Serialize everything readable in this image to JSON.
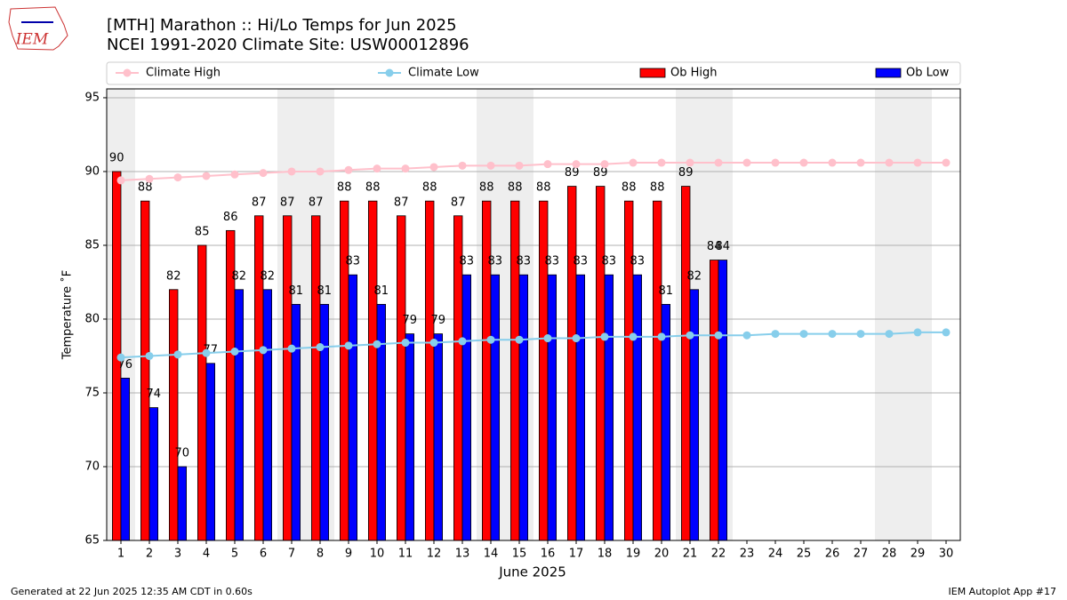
{
  "chart_data": {
    "type": "bar",
    "logo_text": "IEM",
    "title": "[MTH] Marathon :: Hi/Lo Temps for Jun 2025",
    "subtitle": "NCEI 1991-2020 Climate Site: USW00012896",
    "x_label": "June 2025",
    "y_label": "Temperature ˚F",
    "footer_left": "Generated at 22 Jun 2025 12:35 AM CDT in 0.60s",
    "footer_right": "IEM Autoplot App #17",
    "x": [
      1,
      2,
      3,
      4,
      5,
      6,
      7,
      8,
      9,
      10,
      11,
      12,
      13,
      14,
      15,
      16,
      17,
      18,
      19,
      20,
      21,
      22,
      23,
      24,
      25,
      26,
      27,
      28,
      29,
      30
    ],
    "xlim": [
      0.5,
      30.5
    ],
    "xticks": [
      1,
      2,
      3,
      4,
      5,
      6,
      7,
      8,
      9,
      10,
      11,
      12,
      13,
      14,
      15,
      16,
      17,
      18,
      19,
      20,
      21,
      22,
      23,
      24,
      25,
      26,
      27,
      28,
      29,
      30
    ],
    "ylim": [
      65,
      95.6
    ],
    "yticks": [
      65,
      70,
      75,
      80,
      85,
      90,
      95
    ],
    "grid": true,
    "shaded_days": [
      1,
      7,
      8,
      14,
      15,
      21,
      22,
      28,
      29
    ],
    "series": [
      {
        "name": "Climate High",
        "color": "#ffc0cb",
        "style": "line",
        "values": [
          89.4,
          89.5,
          89.6,
          89.7,
          89.8,
          89.9,
          90.0,
          90.0,
          90.1,
          90.2,
          90.2,
          90.3,
          90.4,
          90.4,
          90.4,
          90.5,
          90.5,
          90.5,
          90.6,
          90.6,
          90.6,
          90.6,
          90.6,
          90.6,
          90.6,
          90.6,
          90.6,
          90.6,
          90.6,
          90.6
        ]
      },
      {
        "name": "Climate Low",
        "color": "#87ceeb",
        "style": "line",
        "values": [
          77.4,
          77.5,
          77.6,
          77.7,
          77.8,
          77.9,
          78.0,
          78.1,
          78.2,
          78.3,
          78.4,
          78.4,
          78.5,
          78.6,
          78.6,
          78.7,
          78.7,
          78.8,
          78.8,
          78.8,
          78.9,
          78.9,
          78.9,
          79.0,
          79.0,
          79.0,
          79.0,
          79.0,
          79.1,
          79.1
        ]
      },
      {
        "name": "Ob High",
        "color": "#ff0000",
        "style": "bar",
        "values": [
          90,
          88,
          82,
          85,
          86,
          87,
          87,
          87,
          88,
          88,
          87,
          88,
          87,
          88,
          88,
          88,
          89,
          89,
          88,
          88,
          89,
          84,
          null,
          null,
          null,
          null,
          null,
          null,
          null,
          null
        ]
      },
      {
        "name": "Ob Low",
        "color": "#0000ff",
        "style": "bar",
        "values": [
          76,
          74,
          70,
          77,
          82,
          82,
          81,
          81,
          83,
          81,
          79,
          79,
          83,
          83,
          83,
          83,
          83,
          83,
          83,
          81,
          82,
          84,
          null,
          null,
          null,
          null,
          null,
          null,
          null,
          null
        ]
      }
    ]
  }
}
